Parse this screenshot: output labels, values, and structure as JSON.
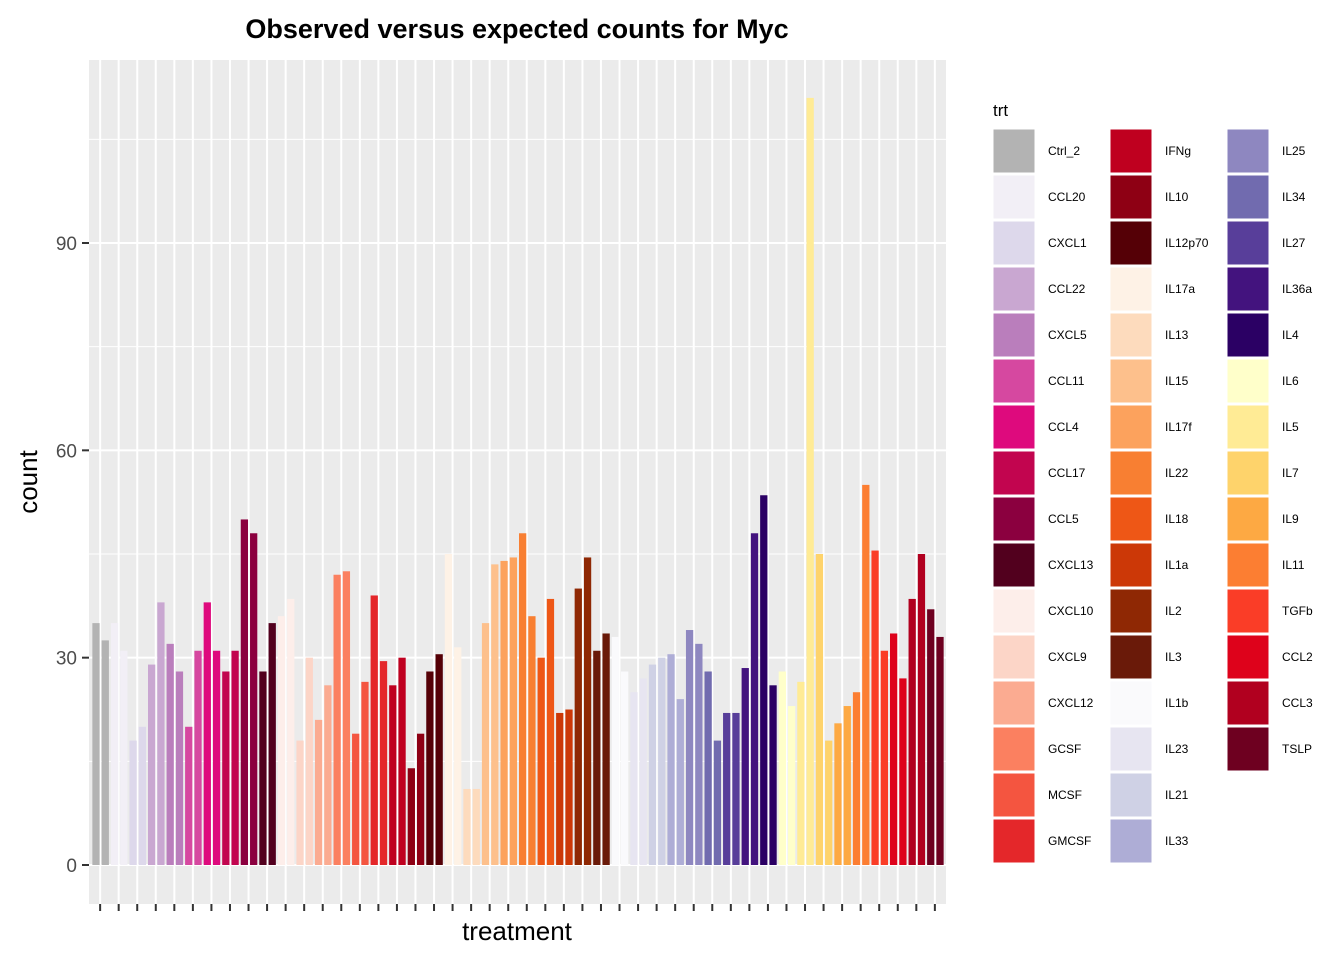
{
  "chart_data": {
    "type": "bar",
    "title": "Observed versus expected counts for Myc",
    "xlabel": "treatment",
    "ylabel": "count",
    "ylim": [
      -3,
      116
    ],
    "y_ticks": [
      0,
      30,
      60,
      90
    ],
    "grid": true,
    "legend": {
      "title": "trt",
      "placement": "right",
      "columns": 3
    },
    "treatments": [
      {
        "name": "Ctrl_2",
        "color": "#B3B3B3"
      },
      {
        "name": "CCL20",
        "color": "#F2EFF6"
      },
      {
        "name": "CXCL1",
        "color": "#DDD8EB"
      },
      {
        "name": "CCL22",
        "color": "#C9A7D1"
      },
      {
        "name": "CXCL5",
        "color": "#BA7EBC"
      },
      {
        "name": "CCL11",
        "color": "#D648A0"
      },
      {
        "name": "CCL4",
        "color": "#DE0A7D"
      },
      {
        "name": "CCL17",
        "color": "#C2054F"
      },
      {
        "name": "CCL5",
        "color": "#8B003F"
      },
      {
        "name": "CXCL13",
        "color": "#52001E"
      },
      {
        "name": "CXCL10",
        "color": "#FDEEEA"
      },
      {
        "name": "CXCL9",
        "color": "#FCD5C7"
      },
      {
        "name": "CXCL12",
        "color": "#FBAB91"
      },
      {
        "name": "GCSF",
        "color": "#FB8060"
      },
      {
        "name": "MCSF",
        "color": "#F45540"
      },
      {
        "name": "GMCSF",
        "color": "#E4272A"
      },
      {
        "name": "IFNg",
        "color": "#BF001F"
      },
      {
        "name": "IL10",
        "color": "#8E0014"
      },
      {
        "name": "IL12p70",
        "color": "#550006"
      },
      {
        "name": "IL17a",
        "color": "#FEF2E6"
      },
      {
        "name": "IL13",
        "color": "#FDDBBD"
      },
      {
        "name": "IL15",
        "color": "#FDC08C"
      },
      {
        "name": "IL17f",
        "color": "#FCA25D"
      },
      {
        "name": "IL22",
        "color": "#F87F32"
      },
      {
        "name": "IL18",
        "color": "#EE5716"
      },
      {
        "name": "IL1a",
        "color": "#CC3807"
      },
      {
        "name": "IL2",
        "color": "#8F2804"
      },
      {
        "name": "IL3",
        "color": "#6A1A09"
      },
      {
        "name": "IL1b",
        "color": "#FAFAFC"
      },
      {
        "name": "IL23",
        "color": "#E7E5F1"
      },
      {
        "name": "IL21",
        "color": "#CFD1E5"
      },
      {
        "name": "IL33",
        "color": "#AEADD6"
      },
      {
        "name": "IL25",
        "color": "#8E87C0"
      },
      {
        "name": "IL34",
        "color": "#716BAF"
      },
      {
        "name": "IL27",
        "color": "#583E9A"
      },
      {
        "name": "IL36a",
        "color": "#43137E"
      },
      {
        "name": "IL4",
        "color": "#2B0064"
      },
      {
        "name": "IL6",
        "color": "#FFFFCA"
      },
      {
        "name": "IL5",
        "color": "#FFEB95"
      },
      {
        "name": "IL7",
        "color": "#FED36B"
      },
      {
        "name": "IL9",
        "color": "#FDA943"
      },
      {
        "name": "IL11",
        "color": "#FC7E32"
      },
      {
        "name": "TGFb",
        "color": "#FA3D27"
      },
      {
        "name": "CCL2",
        "color": "#DE021B"
      },
      {
        "name": "CCL3",
        "color": "#B1001F"
      },
      {
        "name": "TSLP",
        "color": "#6E0020"
      }
    ],
    "bar_values": [
      [
        35,
        32.5
      ],
      [
        35,
        31
      ],
      [
        18,
        20
      ],
      [
        29,
        38
      ],
      [
        32,
        28
      ],
      [
        20,
        31
      ],
      [
        38,
        31
      ],
      [
        28,
        31
      ],
      [
        50,
        48
      ],
      [
        28,
        35
      ],
      [
        36,
        38.5
      ],
      [
        18,
        30
      ],
      [
        21,
        26
      ],
      [
        42,
        42.5
      ],
      [
        19,
        26.5
      ],
      [
        39,
        29.5
      ],
      [
        26,
        30
      ],
      [
        14,
        19
      ],
      [
        28,
        30.5
      ],
      [
        45,
        31.5
      ],
      [
        11,
        11
      ],
      [
        35,
        43.5
      ],
      [
        44,
        44.5
      ],
      [
        48,
        36
      ],
      [
        30,
        38.5
      ],
      [
        22,
        22.5
      ],
      [
        40,
        44.5
      ],
      [
        31,
        33.5
      ],
      [
        33,
        28
      ],
      [
        25,
        27
      ],
      [
        29,
        30
      ],
      [
        30.5,
        24
      ],
      [
        34,
        32
      ],
      [
        28,
        18
      ],
      [
        22,
        22
      ],
      [
        28.5,
        48
      ],
      [
        53.5,
        26
      ],
      [
        28,
        23
      ],
      [
        26.5,
        111
      ],
      [
        45,
        18
      ],
      [
        20.5,
        23
      ],
      [
        25,
        55
      ],
      [
        45.5,
        31
      ],
      [
        33.5,
        27
      ],
      [
        38.5,
        45
      ],
      [
        37,
        33
      ]
    ]
  }
}
